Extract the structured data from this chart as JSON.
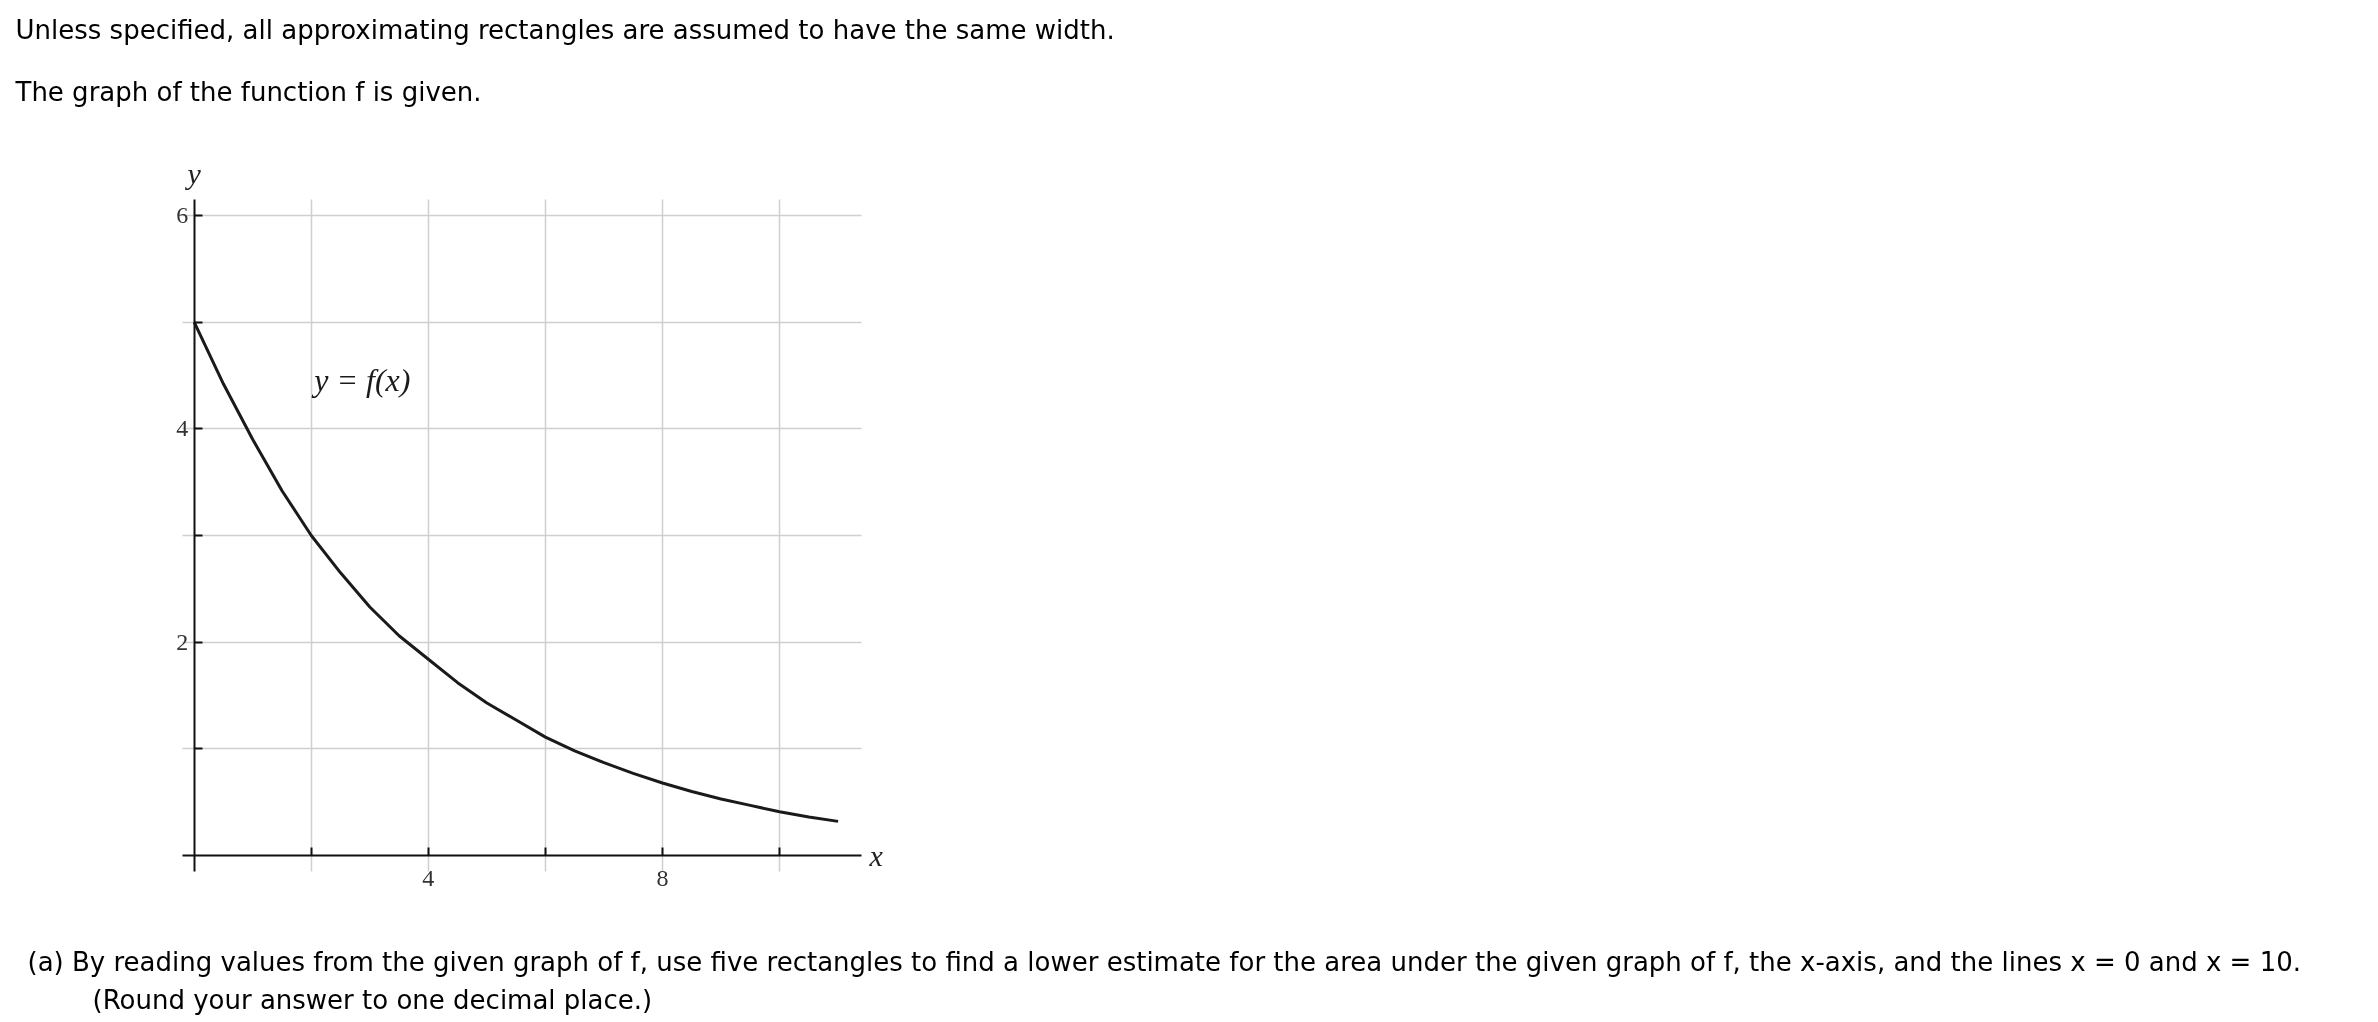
{
  "chart_data": {
    "type": "line",
    "title": "Unless specified, all approximating rectangles are assumed to have the same width.",
    "subtitle": "The graph of the function f is given.",
    "xlabel": "x",
    "ylabel": "y",
    "annotations": [
      "(a) By reading values from the given graph of f, use five rectangles to find a lower estimate for the area under the given graph of f, the x-axis, and the lines x = 0 and x = 10.",
      "(Round your answer to one decimal place.)"
    ],
    "x": [
      0,
      0.5,
      1,
      1.5,
      2,
      2.5,
      3,
      3.5,
      4,
      4.5,
      5,
      5.5,
      6,
      6.5,
      7,
      7.5,
      8,
      8.5,
      9,
      9.5,
      10,
      10.5,
      11
    ],
    "series": [
      {
        "name": "y = f(x)",
        "color": "#1a1a1a",
        "values": [
          5,
          4.42,
          3.9,
          3.42,
          3.0,
          2.65,
          2.33,
          2.06,
          1.84,
          1.62,
          1.43,
          1.27,
          1.11,
          0.98,
          0.87,
          0.77,
          0.68,
          0.6,
          0.53,
          0.47,
          0.41,
          0.36,
          0.32
        ]
      }
    ],
    "xlim": [
      -0.2,
      11.4
    ],
    "ylim": [
      -0.15,
      6.15
    ],
    "xticks": [
      {
        "value": 2,
        "label": null
      },
      4,
      {
        "value": 6,
        "label": null
      },
      8,
      {
        "value": 10,
        "label": null
      }
    ],
    "yticks": [
      {
        "value": 1,
        "label": null
      },
      2,
      {
        "value": 3,
        "label": null
      },
      4,
      {
        "value": 5,
        "label": null
      },
      6
    ],
    "grid": true
  }
}
